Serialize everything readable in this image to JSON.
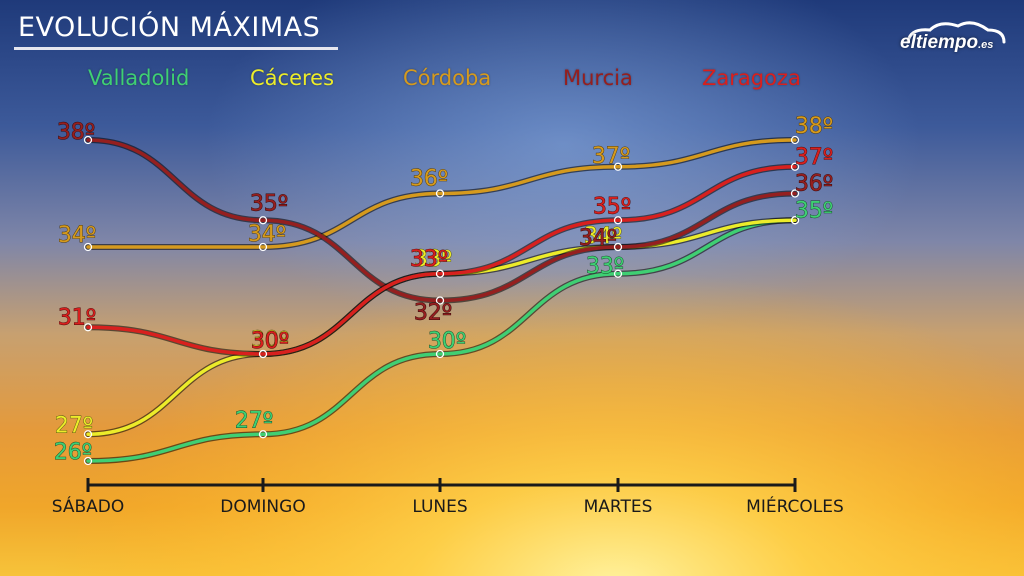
{
  "title": "EVOLUCIÓN MÁXIMAS",
  "logo": {
    "text": "eltiempo",
    "suffix": ".es"
  },
  "chart_data": {
    "type": "line",
    "title": "EVOLUCIÓN MÁXIMAS",
    "categories": [
      "SÁBADO",
      "DOMINGO",
      "LUNES",
      "MARTES",
      "MIÉRCOLES"
    ],
    "unit_suffix": "º",
    "grid": false,
    "legend_position": "top",
    "series": [
      {
        "name": "Valladolid",
        "color": "#3fcf73",
        "values": [
          26,
          27,
          30,
          33,
          35
        ],
        "labels": [
          "26º",
          "27º",
          "30º",
          "33º",
          "35º"
        ]
      },
      {
        "name": "Cáceres",
        "color": "#ecec2a",
        "values": [
          27,
          30,
          33,
          34,
          35
        ],
        "labels": [
          "27º",
          "30º",
          "33º",
          "34º",
          "35º"
        ]
      },
      {
        "name": "Córdoba",
        "color": "#d59a1e",
        "values": [
          34,
          34,
          36,
          37,
          38
        ],
        "labels": [
          "34º",
          "34º",
          "36º",
          "37º",
          "38º"
        ]
      },
      {
        "name": "Murcia",
        "color": "#951f1f",
        "values": [
          38,
          35,
          32,
          34,
          36
        ],
        "labels": [
          "38º",
          "35º",
          "32º",
          "34º",
          "36º"
        ]
      },
      {
        "name": "Zaragoza",
        "color": "#d8201e",
        "values": [
          31,
          30,
          33,
          35,
          37
        ],
        "labels": [
          "31º",
          "30º",
          "33º",
          "35º",
          "37º"
        ]
      }
    ]
  }
}
